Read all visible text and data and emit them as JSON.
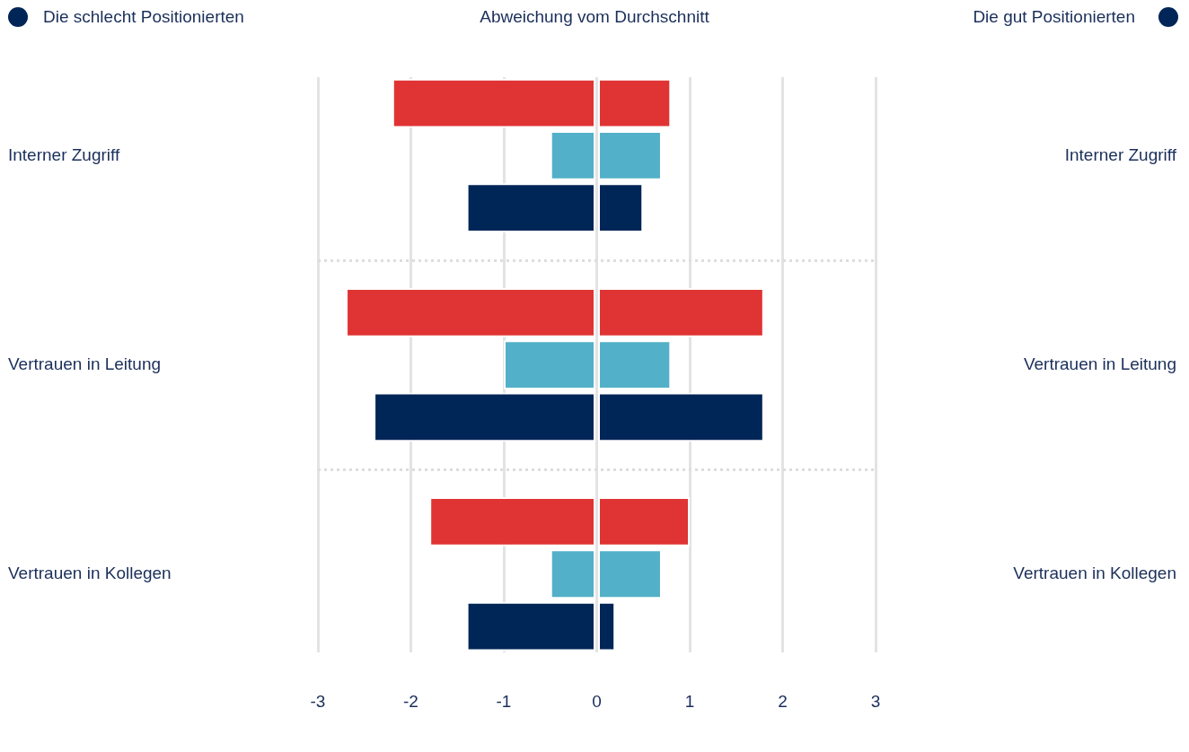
{
  "chart_data": {
    "type": "bar",
    "orientation": "horizontal",
    "stacked": true,
    "title": "Abweichung vom Durchschnitt",
    "annotations": [
      "Die schlecht Positionierten",
      "Die gut Positionierten"
    ],
    "categories": [
      null,
      "Interner Zugriff",
      null,
      null,
      null,
      "Vertrauen in Leitung",
      null,
      null,
      null,
      "Vertrauen in Kollegen",
      null
    ],
    "series": [
      {
        "colors": [
          "#e03333",
          "#52b0c8",
          "#002557",
          null,
          "#e03333",
          "#52b0c8",
          "#002557",
          null,
          "#e03333",
          "#52b0c8",
          "#002557"
        ],
        "values": [
          -2.2,
          -0.5,
          -1.4,
          null,
          -2.7,
          -1.0,
          -2.4,
          null,
          -1.8,
          -0.5,
          -1.4
        ]
      },
      {
        "colors": [
          "#e03333",
          "#52b0c8",
          "#002557",
          null,
          "#e03333",
          "#52b0c8",
          "#002557",
          null,
          "#e03333",
          "#52b0c8",
          "#002557"
        ],
        "values": [
          0.8,
          0.7,
          0.5,
          null,
          1.8,
          0.8,
          1.8,
          null,
          1.0,
          0.7,
          0.2
        ]
      }
    ],
    "xlim": [
      -3,
      3
    ],
    "xticks": [
      -3,
      -2,
      -1,
      0,
      1,
      2,
      3
    ],
    "grid": true
  }
}
